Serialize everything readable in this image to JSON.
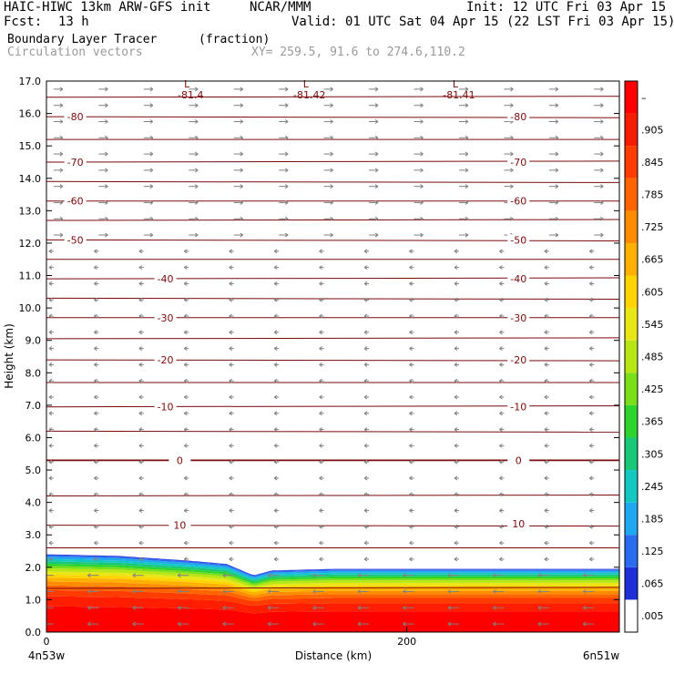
{
  "header": {
    "title_left": "HAIC-HIWC 13km ARW-GFS init",
    "org": "NCAR/MMM",
    "init": "Init: 12 UTC Fri 03 Apr 15",
    "fcst_label": "Fcst:",
    "fcst_value": "13 h",
    "valid": "Valid: 01 UTC Sat 04 Apr 15 (22 LST Fri 03 Apr 15)",
    "field_name": "Boundary Layer Tracer",
    "field_units": "(fraction)",
    "vector_name": "Circulation vectors",
    "xy_text": "XY= 259.5, 91.6 to 274.6,110.2"
  },
  "chart_data": {
    "type": "heatmap",
    "xlabel": "Distance (km)",
    "ylabel": "Height (km)",
    "xlim": [
      0,
      318
    ],
    "ylim": [
      0,
      17
    ],
    "x_ticks": [
      {
        "value": 0,
        "label": "0"
      },
      {
        "value": 200,
        "label": "200"
      }
    ],
    "x_end_labels": {
      "left": "4n53w",
      "right": "6n51w"
    },
    "y_ticks": [
      "0.0",
      "1.0",
      "2.0",
      "3.0",
      "4.0",
      "5.0",
      "6.0",
      "7.0",
      "8.0",
      "9.0",
      "10.0",
      "11.0",
      "12.0",
      "13.0",
      "14.0",
      "15.0",
      "16.0",
      "17.0"
    ],
    "colorbar": {
      "labels": [
        ".005",
        ".065",
        ".125",
        ".185",
        ".245",
        ".305",
        ".365",
        ".425",
        ".485",
        ".545",
        ".605",
        ".665",
        ".725",
        ".785",
        ".845",
        ".905",
        "–"
      ],
      "colors": [
        "#ffffff",
        "#1f2fd8",
        "#2a6cf0",
        "#1fa8f0",
        "#12c8c0",
        "#18c878",
        "#2ed42e",
        "#7ade18",
        "#b8e614",
        "#e8e614",
        "#ffd400",
        "#ffb000",
        "#ff8c00",
        "#ff6400",
        "#ff3c00",
        "#f51e00",
        "#ff0000"
      ]
    },
    "tracer_top_km": [
      {
        "x": 0,
        "y": 2.4
      },
      {
        "x": 40,
        "y": 2.35
      },
      {
        "x": 80,
        "y": 2.2
      },
      {
        "x": 100,
        "y": 2.1
      },
      {
        "x": 115,
        "y": 1.75
      },
      {
        "x": 125,
        "y": 1.9
      },
      {
        "x": 160,
        "y": 1.95
      },
      {
        "x": 220,
        "y": 1.95
      },
      {
        "x": 280,
        "y": 1.95
      },
      {
        "x": 318,
        "y": 1.95
      }
    ],
    "isotherm_heights_km": [
      1.35,
      2.6,
      3.3,
      4.2,
      5.3,
      6.2,
      6.95,
      7.7,
      8.4,
      9.05,
      9.7,
      10.3,
      10.9,
      11.5,
      12.1,
      12.7,
      13.3,
      13.9,
      14.5,
      15.2,
      15.9,
      16.5
    ],
    "contour_labels": [
      {
        "text": "10",
        "x": 74,
        "y": 3.3
      },
      {
        "text": "10",
        "x": 262,
        "y": 3.35
      },
      {
        "text": "0",
        "x": 74,
        "y": 5.3
      },
      {
        "text": "0",
        "x": 262,
        "y": 5.3
      },
      {
        "text": "-10",
        "x": 66,
        "y": 6.95
      },
      {
        "text": "-10",
        "x": 262,
        "y": 6.95
      },
      {
        "text": "-20",
        "x": 66,
        "y": 8.4
      },
      {
        "text": "-20",
        "x": 262,
        "y": 8.4
      },
      {
        "text": "-30",
        "x": 66,
        "y": 9.7
      },
      {
        "text": "-30",
        "x": 262,
        "y": 9.7
      },
      {
        "text": "-40",
        "x": 66,
        "y": 10.9
      },
      {
        "text": "-40",
        "x": 262,
        "y": 10.9
      },
      {
        "text": "-50",
        "x": 16,
        "y": 12.1
      },
      {
        "text": "-50",
        "x": 262,
        "y": 12.1
      },
      {
        "text": "-60",
        "x": 16,
        "y": 13.3
      },
      {
        "text": "-60",
        "x": 262,
        "y": 13.3
      },
      {
        "text": "-70",
        "x": 16,
        "y": 14.5
      },
      {
        "text": "-70",
        "x": 262,
        "y": 14.5
      },
      {
        "text": "-80",
        "x": 16,
        "y": 15.9
      },
      {
        "text": "-80",
        "x": 262,
        "y": 15.9
      }
    ],
    "low_labels": [
      {
        "marker": "L",
        "value": "-81.4",
        "x": 80,
        "y": 16.8
      },
      {
        "marker": "L",
        "value": "-81.42",
        "x": 146,
        "y": 16.8
      },
      {
        "marker": "L",
        "value": "-81.41",
        "x": 229,
        "y": 16.8
      }
    ]
  }
}
